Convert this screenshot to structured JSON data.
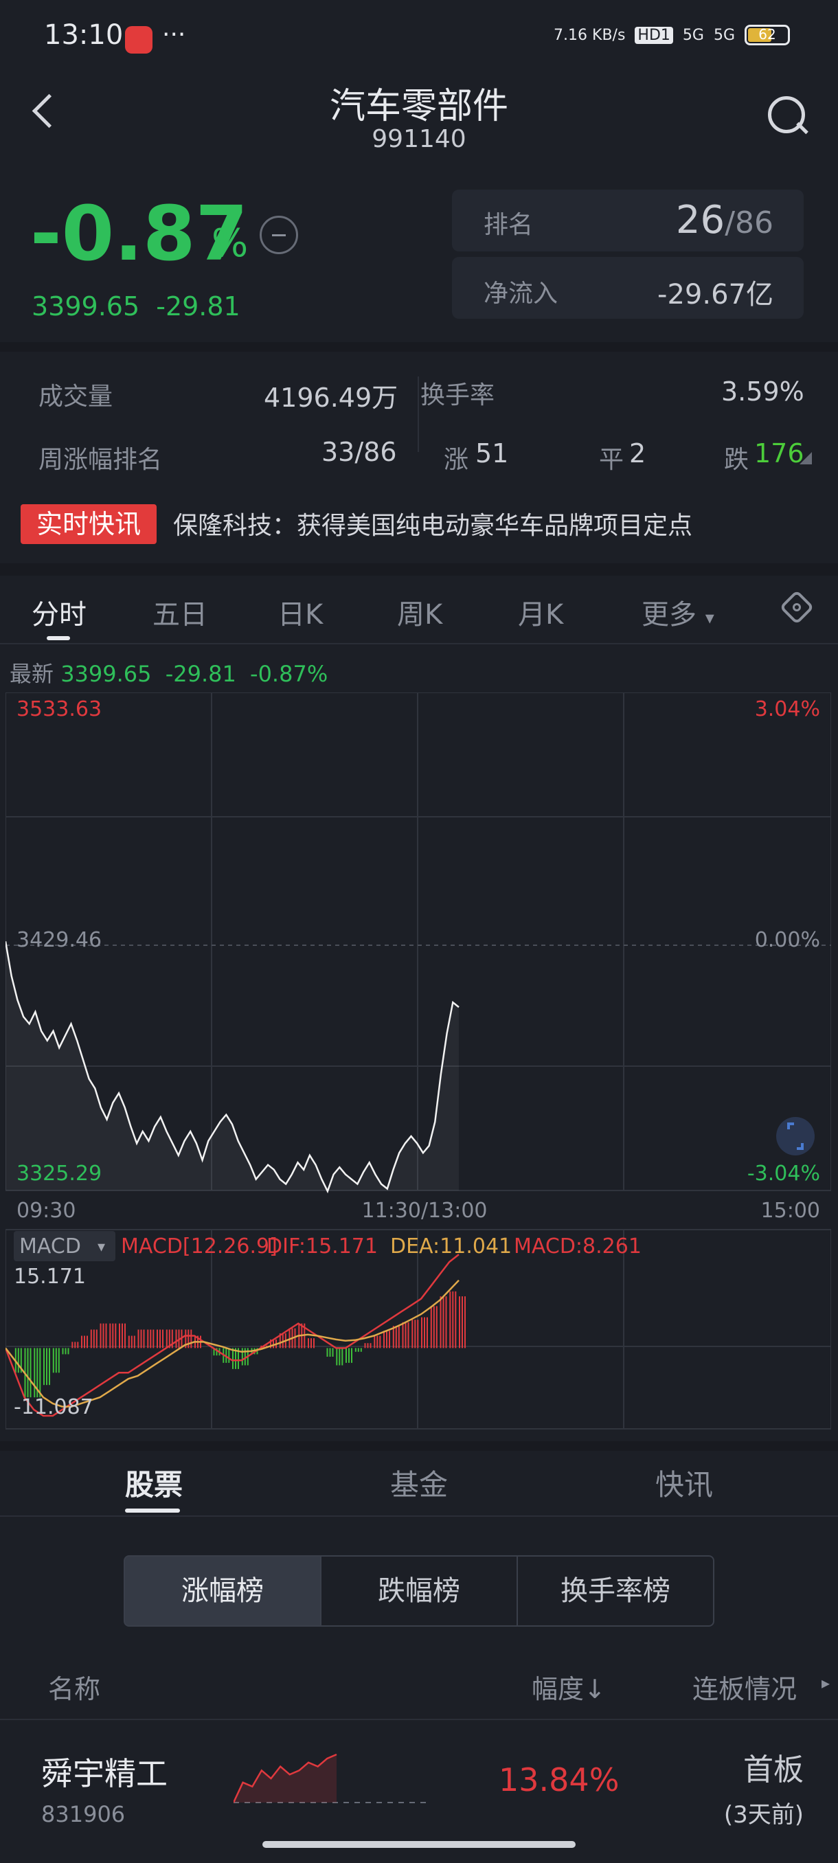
{
  "status_bar": {
    "time": "13:10",
    "more": "···",
    "net_speed": "7.16 KB/s",
    "hd": "HD1",
    "sig1": "5G",
    "sig2": "5G",
    "battery": "62"
  },
  "header": {
    "title": "汽车零部件",
    "code": "991140"
  },
  "quote": {
    "change_pct": "-0.87",
    "pct_sign": "%",
    "price": "3399.65",
    "change": "-29.81",
    "rank_label": "排名",
    "rank_value": "26",
    "rank_total": "/86",
    "flow_label": "净流入",
    "flow_value": "-29.67亿"
  },
  "stats": {
    "volume_label": "成交量",
    "volume_value": "4196.49万",
    "turnover_label": "换手率",
    "turnover_value": "3.59%",
    "week_rank_label": "周涨幅排名",
    "week_rank_value": "33/86",
    "up_label": "涨",
    "up_value": "51",
    "flat_label": "平",
    "flat_value": "2",
    "down_label": "跌",
    "down_value": "176"
  },
  "news": {
    "badge": "实时快讯",
    "text": "保隆科技：获得美国纯电动豪华车品牌项目定点"
  },
  "chart_tabs": {
    "items": [
      "分时",
      "五日",
      "日K",
      "周K",
      "月K",
      "更多"
    ],
    "active": "分时"
  },
  "latest": {
    "label": "最新",
    "price": "3399.65",
    "change": "-29.81",
    "pct": "-0.87%"
  },
  "chart_data": {
    "type": "line",
    "y_top": "3533.63",
    "y_mid": "3429.46",
    "y_bot": "3325.29",
    "pct_top": "3.04%",
    "pct_mid": "0.00%",
    "pct_bot": "-3.04%",
    "x_labels": [
      "09:30",
      "11:30/13:00",
      "15:00"
    ],
    "ylim": [
      3325.29,
      3533.63
    ],
    "prev_close": 3429.46,
    "series": [
      {
        "values": [
          3429.5,
          3415,
          3405,
          3398,
          3395,
          3400,
          3392,
          3388,
          3392,
          3385,
          3390,
          3395,
          3388,
          3380,
          3372,
          3368,
          3360,
          3355,
          3362,
          3366,
          3360,
          3352,
          3345,
          3350,
          3346,
          3352,
          3356,
          3350,
          3345,
          3340,
          3346,
          3350,
          3345,
          3338,
          3346,
          3350,
          3354,
          3357,
          3353,
          3346,
          3341,
          3336,
          3330,
          3333,
          3336,
          3334,
          3330,
          3328,
          3332,
          3337,
          3334,
          3340,
          3336,
          3330,
          3325,
          3332,
          3335,
          3332,
          3330,
          3328,
          3333,
          3337,
          3332,
          3328,
          3326,
          3334,
          3341,
          3345,
          3348,
          3345,
          3341,
          3344,
          3354,
          3374,
          3391,
          3404,
          3402
        ]
      }
    ],
    "macd": {
      "indicator": "MACD",
      "params": "MACD[12.26.9]",
      "dif_label": "DIF:15.171",
      "dea_label": "DEA:11.041",
      "macd_label": "MACD:8.261",
      "top": "15.171",
      "bottom": "-11.087",
      "dif": [
        0,
        -4,
        -8,
        -10,
        -11,
        -11,
        -10,
        -9,
        -8,
        -7,
        -6,
        -5,
        -4,
        -4,
        -3,
        -2,
        -1,
        0,
        1,
        2,
        2,
        1,
        0,
        -1,
        -2,
        -2,
        -1,
        0,
        1,
        2,
        3,
        4,
        3,
        2,
        1,
        0,
        0,
        1,
        2,
        3,
        4,
        5,
        6,
        7,
        8,
        10,
        12,
        14,
        15.2
      ],
      "dea": [
        0,
        -2,
        -4,
        -6,
        -8,
        -9,
        -9.5,
        -9.5,
        -9,
        -8.5,
        -8,
        -7,
        -6,
        -5,
        -4.5,
        -3.5,
        -2.5,
        -1.5,
        -0.5,
        0.5,
        1,
        1,
        0.6,
        0.2,
        -0.3,
        -0.6,
        -0.5,
        -0.2,
        0.3,
        0.8,
        1.4,
        2,
        2.2,
        2,
        1.7,
        1.4,
        1.2,
        1.3,
        1.6,
        2,
        2.6,
        3.2,
        3.9,
        4.7,
        5.5,
        6.6,
        7.8,
        9.4,
        11
      ]
    }
  },
  "bottom_tabs": {
    "items": [
      "股票",
      "基金",
      "快讯"
    ],
    "active": "股票"
  },
  "segments": {
    "items": [
      "涨幅榜",
      "跌幅榜",
      "换手率榜"
    ],
    "active": "涨幅榜"
  },
  "list_header": {
    "name": "名称",
    "range": "幅度↓",
    "board": "连板情况"
  },
  "list": [
    {
      "name": "舜宇精工",
      "code": "831906",
      "pct": "13.84%",
      "board": "首板",
      "board_sub": "(3天前)",
      "spark": [
        0,
        5,
        4,
        8,
        6,
        9,
        7,
        8,
        10,
        9,
        11,
        12
      ]
    }
  ],
  "colors": {
    "green": "#2fbf5a",
    "red": "#e0393e",
    "bg": "#1c1f26"
  }
}
